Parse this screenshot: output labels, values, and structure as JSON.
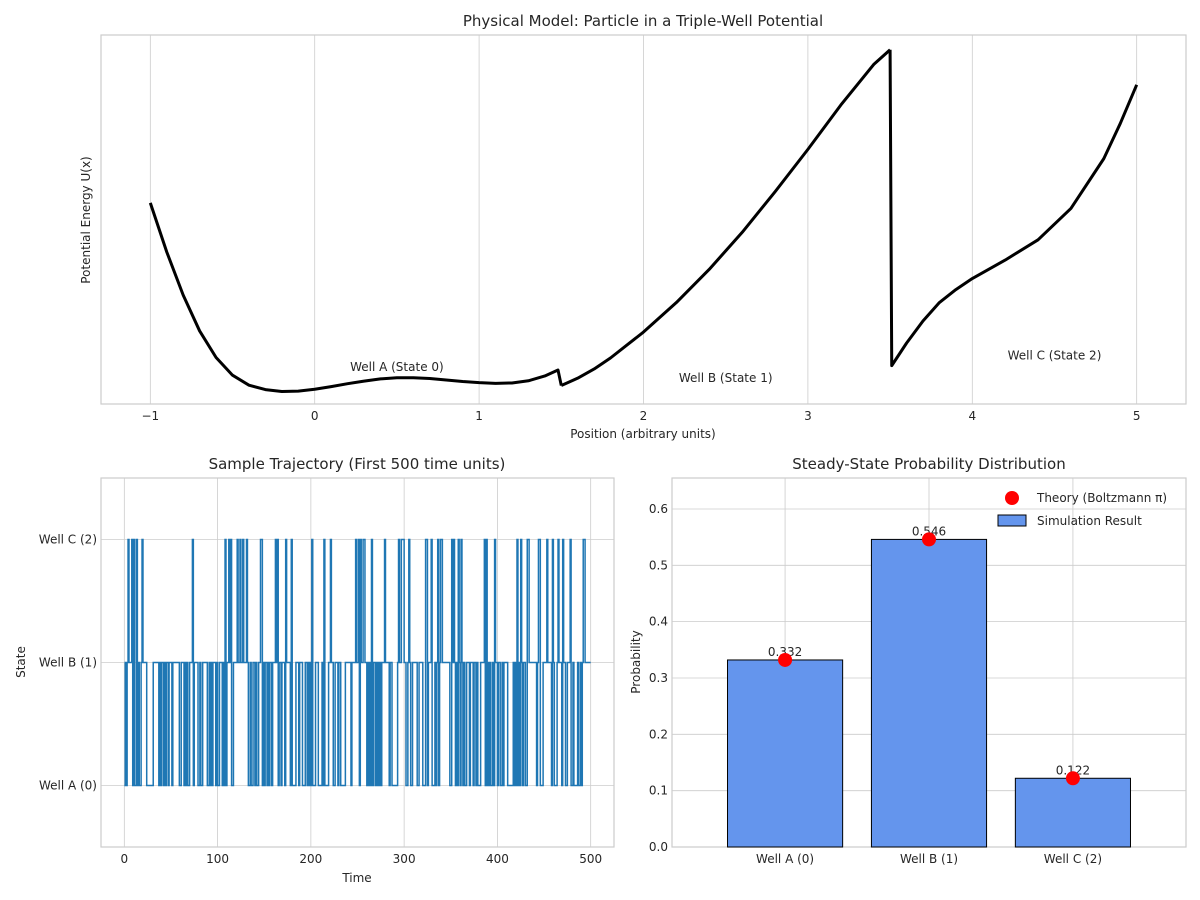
{
  "chart_data": [
    {
      "type": "line",
      "title": "Physical Model: Particle in a Triple-Well Potential",
      "xlabel": "Position (arbitrary units)",
      "ylabel": "Potential Energy U(x)",
      "xlim": [
        -1.3,
        5.3
      ],
      "ylim": [
        0,
        10
      ],
      "xticks": [
        -1,
        0,
        1,
        2,
        3,
        4,
        5
      ],
      "xtick_labels": [
        "−1",
        "0",
        "1",
        "2",
        "3",
        "4",
        "5"
      ],
      "yticks_shown": false,
      "segments": [
        {
          "x": [
            -1.0,
            -0.9,
            -0.8,
            -0.7,
            -0.6,
            -0.5,
            -0.4,
            -0.3,
            -0.2,
            -0.1,
            0.0,
            0.1,
            0.2,
            0.3,
            0.4,
            0.5,
            0.6,
            0.7,
            0.8,
            0.9,
            1.0,
            1.1,
            1.2,
            1.3,
            1.4,
            1.48,
            1.5
          ],
          "y": [
            5.45,
            4.12,
            2.95,
            1.98,
            1.26,
            0.78,
            0.51,
            0.39,
            0.34,
            0.35,
            0.4,
            0.47,
            0.55,
            0.62,
            0.68,
            0.71,
            0.71,
            0.69,
            0.65,
            0.61,
            0.58,
            0.56,
            0.57,
            0.63,
            0.76,
            0.92,
            0.5
          ]
        },
        {
          "x": [
            1.5,
            1.6,
            1.7,
            1.8,
            1.9,
            2.0,
            2.2,
            2.4,
            2.6,
            2.8,
            3.0,
            3.2,
            3.4,
            3.5
          ],
          "y": [
            0.5,
            0.7,
            0.95,
            1.25,
            1.6,
            1.95,
            2.75,
            3.65,
            4.65,
            5.75,
            6.9,
            8.1,
            9.2,
            9.6
          ]
        },
        {
          "x": [
            3.5,
            3.51,
            3.6,
            3.7,
            3.8,
            3.9,
            4.0,
            4.2,
            4.4,
            4.6,
            4.8,
            4.9,
            5.0
          ],
          "y": [
            9.6,
            1.04,
            1.65,
            2.25,
            2.75,
            3.1,
            3.4,
            3.9,
            4.45,
            5.3,
            6.65,
            7.6,
            8.65
          ]
        }
      ],
      "annotations": [
        {
          "text": "Well A (State 0)",
          "x": 0.5,
          "y": 0.9
        },
        {
          "text": "Well B (State 1)",
          "x": 2.5,
          "y": 0.6
        },
        {
          "text": "Well C (State 2)",
          "x": 4.5,
          "y": 1.2
        }
      ]
    },
    {
      "type": "line",
      "title": "Sample Trajectory (First 500 time units)",
      "xlabel": "Time",
      "ylabel": "State",
      "xlim": [
        -25,
        525
      ],
      "ylim": [
        -0.5,
        2.5
      ],
      "xticks": [
        0,
        100,
        200,
        300,
        400,
        500
      ],
      "yticks": [
        0,
        1,
        2
      ],
      "ytick_labels": [
        "Well A (0)",
        "Well B (1)",
        "Well C (2)"
      ],
      "color": "#1f77b4",
      "series_seed": 7,
      "n_steps": 500,
      "state_probabilities": [
        0.332,
        0.546,
        0.122
      ]
    },
    {
      "type": "bar",
      "title": "Steady-State Probability Distribution",
      "ylabel": "Probability",
      "categories": [
        "Well A (0)",
        "Well B (1)",
        "Well C (2)"
      ],
      "values": [
        0.332,
        0.546,
        0.122
      ],
      "value_labels": [
        "0.332",
        "0.546",
        "0.122"
      ],
      "theory": [
        0.332,
        0.546,
        0.122
      ],
      "ylim": [
        0,
        0.655
      ],
      "yticks": [
        0.0,
        0.1,
        0.2,
        0.3,
        0.4,
        0.5,
        0.6
      ],
      "ytick_labels": [
        "0.0",
        "0.1",
        "0.2",
        "0.3",
        "0.4",
        "0.5",
        "0.6"
      ],
      "bar_color": "#6495ed",
      "theory_color": "#ff0000",
      "legend": {
        "position": "top-right",
        "theory_label": "Theory (Boltzmann π)",
        "sim_label": "Simulation Result"
      }
    }
  ]
}
